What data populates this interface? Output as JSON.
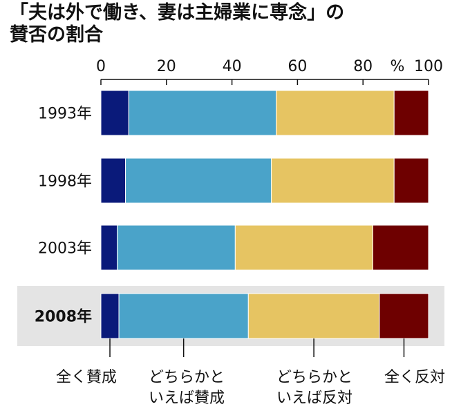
{
  "title_line1": "「夫は外で働き、妻は主婦業に専念」の",
  "title_line2": "賛否の割合",
  "chart_data": {
    "type": "bar",
    "stacked": true,
    "orientation": "horizontal",
    "unit": "%",
    "xlim": [
      0,
      100
    ],
    "x_ticks": [
      "0",
      "20",
      "40",
      "60",
      "80",
      "100"
    ],
    "categories": [
      "1993年",
      "1998年",
      "2003年",
      "2008年"
    ],
    "highlighted_category": "2008年",
    "series": [
      {
        "name": "全く賛成",
        "color": "#0a1a7a",
        "values": [
          8.5,
          7.5,
          5,
          5.5
        ]
      },
      {
        "name": "どちらかといえば賛成",
        "color": "#4aa3c9",
        "values": [
          45,
          44.5,
          36,
          39.5
        ]
      },
      {
        "name": "どちらかといえば反対",
        "color": "#e6c462",
        "values": [
          36,
          37.5,
          42,
          40
        ]
      },
      {
        "name": "全く反対",
        "color": "#6e0000",
        "values": [
          10.5,
          10.5,
          17,
          15
        ]
      }
    ],
    "legend_lines": [
      [
        "全く賛成"
      ],
      [
        "どちらかと",
        "いえば賛成"
      ],
      [
        "どちらかと",
        "いえば反対"
      ],
      [
        "全く反対"
      ]
    ]
  }
}
